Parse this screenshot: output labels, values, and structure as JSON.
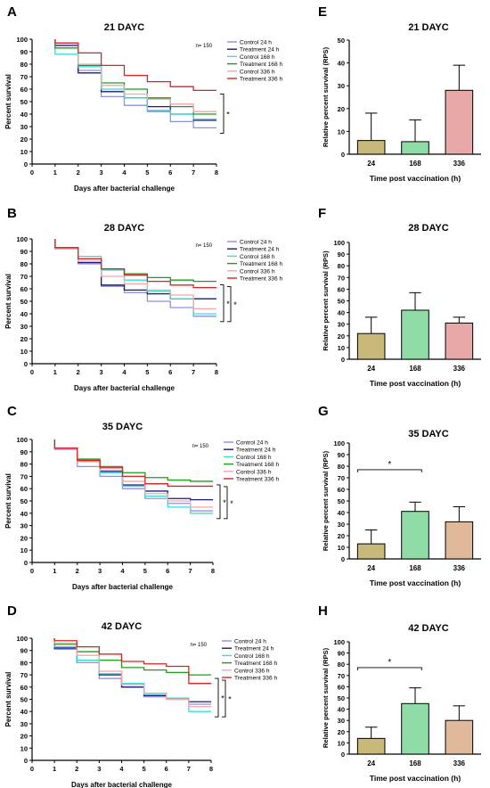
{
  "figure": {
    "panel_letters": [
      "A",
      "B",
      "C",
      "D",
      "E",
      "F",
      "G",
      "H"
    ]
  },
  "chart_data": [
    {
      "type": "line",
      "panel": "A",
      "title": "21 DAYC",
      "xlabel": "Days after bacterial challenge",
      "ylabel": "Percent survival",
      "xlim": [
        0,
        8
      ],
      "ylim": [
        0,
        100
      ],
      "xticks": [
        "0",
        "1",
        "2",
        "3",
        "4",
        "5",
        "6",
        "7",
        "8"
      ],
      "yticks": [
        "0",
        "10",
        "20",
        "30",
        "40",
        "50",
        "60",
        "70",
        "80",
        "90",
        "100"
      ],
      "n_label": "n= 150",
      "significance": [
        "*"
      ],
      "legend_position": "top-right",
      "x": [
        1,
        2,
        3,
        4,
        5,
        6,
        7,
        8
      ],
      "series": [
        {
          "name": "Control 24 h",
          "color": "#8f8fe6",
          "values": [
            95,
            75,
            54,
            47,
            42,
            34,
            29,
            29
          ]
        },
        {
          "name": "Treatment 24 h",
          "color": "#1a1a80",
          "values": [
            95,
            73,
            58,
            53,
            46,
            40,
            35,
            35
          ]
        },
        {
          "name": "Control 168 h",
          "color": "#33e0d6",
          "values": [
            88,
            78,
            60,
            53,
            43,
            40,
            36,
            36
          ]
        },
        {
          "name": "Treatment 168 h",
          "color": "#1a9e1a",
          "values": [
            93,
            79,
            65,
            60,
            53,
            46,
            40,
            40
          ]
        },
        {
          "name": "Control 336 h",
          "color": "#f2a6a6",
          "values": [
            97,
            80,
            63,
            56,
            52,
            48,
            42,
            42
          ]
        },
        {
          "name": "Treatment 336 h",
          "color": "#e02020",
          "values": [
            97,
            89,
            79,
            71,
            66,
            62,
            59,
            59
          ]
        }
      ]
    },
    {
      "type": "line",
      "panel": "B",
      "title": "28 DAYC",
      "xlabel": "Days after bacterial challenge",
      "ylabel": "Percent survival",
      "xlim": [
        0,
        8
      ],
      "ylim": [
        0,
        100
      ],
      "xticks": [
        "0",
        "1",
        "2",
        "3",
        "4",
        "5",
        "6",
        "7",
        "8"
      ],
      "yticks": [
        "0",
        "10",
        "20",
        "30",
        "40",
        "50",
        "60",
        "70",
        "80",
        "90",
        "100"
      ],
      "n_label": "n= 150",
      "significance": [
        "*",
        "*"
      ],
      "legend_position": "top-right",
      "x": [
        1,
        2,
        3,
        4,
        5,
        6,
        7,
        8
      ],
      "series": [
        {
          "name": "Control 24 h",
          "color": "#8f8fe6",
          "values": [
            92,
            80,
            62,
            57,
            50,
            45,
            38,
            38
          ]
        },
        {
          "name": "Treatment 24 h",
          "color": "#1a1a80",
          "values": [
            93,
            81,
            63,
            59,
            56,
            52,
            52,
            52
          ]
        },
        {
          "name": "Control 168 h",
          "color": "#33e0d6",
          "values": [
            93,
            86,
            75,
            67,
            58,
            52,
            40,
            40
          ]
        },
        {
          "name": "Treatment 168 h",
          "color": "#1a9e1a",
          "values": [
            93,
            84,
            76,
            72,
            69,
            67,
            66,
            66
          ]
        },
        {
          "name": "Control 336 h",
          "color": "#f2a6a6",
          "values": [
            92,
            82,
            70,
            64,
            59,
            55,
            44,
            44
          ]
        },
        {
          "name": "Treatment 336 h",
          "color": "#e02020",
          "values": [
            93,
            84,
            76,
            71,
            66,
            63,
            61,
            61
          ]
        }
      ]
    },
    {
      "type": "line",
      "panel": "C",
      "title": "35 DAYC",
      "xlabel": "Days after bacterial challenge",
      "ylabel": "Percent survival",
      "xlim": [
        0,
        8
      ],
      "ylim": [
        0,
        100
      ],
      "xticks": [
        "0",
        "1",
        "2",
        "3",
        "4",
        "5",
        "6",
        "7",
        "8"
      ],
      "yticks": [
        "0",
        "10",
        "20",
        "30",
        "40",
        "50",
        "60",
        "70",
        "80",
        "90",
        "100"
      ],
      "n_label": "n= 150",
      "significance": [
        "*",
        "*"
      ],
      "legend_position": "top-right",
      "x": [
        1,
        2,
        3,
        4,
        5,
        6,
        7,
        8
      ],
      "series": [
        {
          "name": "Control 24 h",
          "color": "#8f8fe6",
          "values": [
            92,
            78,
            70,
            60,
            52,
            48,
            42,
            42
          ]
        },
        {
          "name": "Treatment 24 h",
          "color": "#1a1a80",
          "values": [
            93,
            82,
            74,
            63,
            58,
            52,
            51,
            51
          ]
        },
        {
          "name": "Control 168 h",
          "color": "#33e0d6",
          "values": [
            93,
            83,
            73,
            62,
            54,
            45,
            40,
            40
          ]
        },
        {
          "name": "Treatment 168 h",
          "color": "#1a9e1a",
          "values": [
            93,
            84,
            78,
            73,
            69,
            67,
            66,
            66
          ]
        },
        {
          "name": "Control 336 h",
          "color": "#f2a6a6",
          "values": [
            93,
            82,
            75,
            66,
            56,
            50,
            45,
            45
          ]
        },
        {
          "name": "Treatment 336 h",
          "color": "#e02020",
          "values": [
            93,
            83,
            77,
            70,
            64,
            62,
            62,
            62
          ]
        }
      ]
    },
    {
      "type": "line",
      "panel": "D",
      "title": "42 DAYC",
      "xlabel": "Days after bacterial challenge",
      "ylabel": "Percent survival",
      "xlim": [
        0,
        8
      ],
      "ylim": [
        0,
        100
      ],
      "xticks": [
        "0",
        "1",
        "2",
        "3",
        "4",
        "5",
        "6",
        "7",
        "8"
      ],
      "yticks": [
        "0",
        "10",
        "20",
        "30",
        "40",
        "50",
        "60",
        "70",
        "80",
        "90",
        "100"
      ],
      "n_label": "n= 150",
      "significance": [
        "*",
        "*"
      ],
      "legend_position": "top-right",
      "x": [
        1,
        2,
        3,
        4,
        5,
        6,
        7,
        8
      ],
      "series": [
        {
          "name": "Control 24 h",
          "color": "#8f8fe6",
          "values": [
            91,
            80,
            67,
            60,
            52,
            50,
            46,
            46
          ]
        },
        {
          "name": "Treatment 24 h",
          "color": "#1a1a80",
          "values": [
            92,
            82,
            70,
            60,
            53,
            51,
            48,
            48
          ]
        },
        {
          "name": "Control 168 h",
          "color": "#33e0d6",
          "values": [
            93,
            82,
            71,
            63,
            54,
            51,
            40,
            40
          ]
        },
        {
          "name": "Treatment 168 h",
          "color": "#1a9e1a",
          "values": [
            95,
            89,
            82,
            76,
            74,
            72,
            70,
            70
          ]
        },
        {
          "name": "Control 336 h",
          "color": "#f2a6a6",
          "values": [
            96,
            86,
            73,
            62,
            55,
            50,
            44,
            44
          ]
        },
        {
          "name": "Treatment 336 h",
          "color": "#e02020",
          "values": [
            98,
            93,
            87,
            81,
            79,
            77,
            63,
            63
          ]
        }
      ]
    },
    {
      "type": "bar",
      "panel": "E",
      "title": "21 DAYC",
      "xlabel": "Time post vaccination (h)",
      "ylabel": "Relative percent survival (RPS)",
      "ylim": [
        0,
        50
      ],
      "yticks": [
        "0",
        "10",
        "20",
        "30",
        "40",
        "50"
      ],
      "categories": [
        "24",
        "168",
        "336"
      ],
      "values": [
        6,
        5.5,
        28
      ],
      "errors": [
        12,
        9.5,
        11
      ],
      "colors": [
        "#c8b87a",
        "#8fdca6",
        "#e8a8a8"
      ],
      "significance": []
    },
    {
      "type": "bar",
      "panel": "F",
      "title": "28 DAYC",
      "xlabel": "Time post vaccination (h)",
      "ylabel": "Relative percent survival (RPS)",
      "ylim": [
        0,
        100
      ],
      "yticks": [
        "0",
        "10",
        "20",
        "30",
        "40",
        "50",
        "60",
        "70",
        "80",
        "90",
        "100"
      ],
      "categories": [
        "24",
        "168",
        "336"
      ],
      "values": [
        22,
        42,
        31
      ],
      "errors": [
        14,
        15,
        5
      ],
      "colors": [
        "#c8b87a",
        "#8fdca6",
        "#e8a8a8"
      ],
      "significance": []
    },
    {
      "type": "bar",
      "panel": "G",
      "title": "35 DAYC",
      "xlabel": "Time post vaccination (h)",
      "ylabel": "Relative percent survival (RPS)",
      "ylim": [
        0,
        100
      ],
      "yticks": [
        "0",
        "10",
        "20",
        "30",
        "40",
        "50",
        "60",
        "70",
        "80",
        "90",
        "100"
      ],
      "categories": [
        "24",
        "168",
        "336"
      ],
      "values": [
        13,
        41,
        32
      ],
      "errors": [
        12,
        8,
        13
      ],
      "colors": [
        "#c8b87a",
        "#8fdca6",
        "#e0b89a"
      ],
      "significance": [
        {
          "from": 0,
          "to": 1,
          "label": "*"
        }
      ]
    },
    {
      "type": "bar",
      "panel": "H",
      "title": "42 DAYC",
      "xlabel": "Time post vaccination (h)",
      "ylabel": "Relative percent survival (RPS)",
      "ylim": [
        0,
        100
      ],
      "yticks": [
        "0",
        "10",
        "20",
        "30",
        "40",
        "50",
        "60",
        "70",
        "80",
        "90",
        "100"
      ],
      "categories": [
        "24",
        "168",
        "336"
      ],
      "values": [
        14,
        45,
        30
      ],
      "errors": [
        10,
        14,
        13
      ],
      "colors": [
        "#c8b87a",
        "#8fdca6",
        "#e0b89a"
      ],
      "significance": [
        {
          "from": 0,
          "to": 1,
          "label": "*"
        }
      ]
    }
  ]
}
